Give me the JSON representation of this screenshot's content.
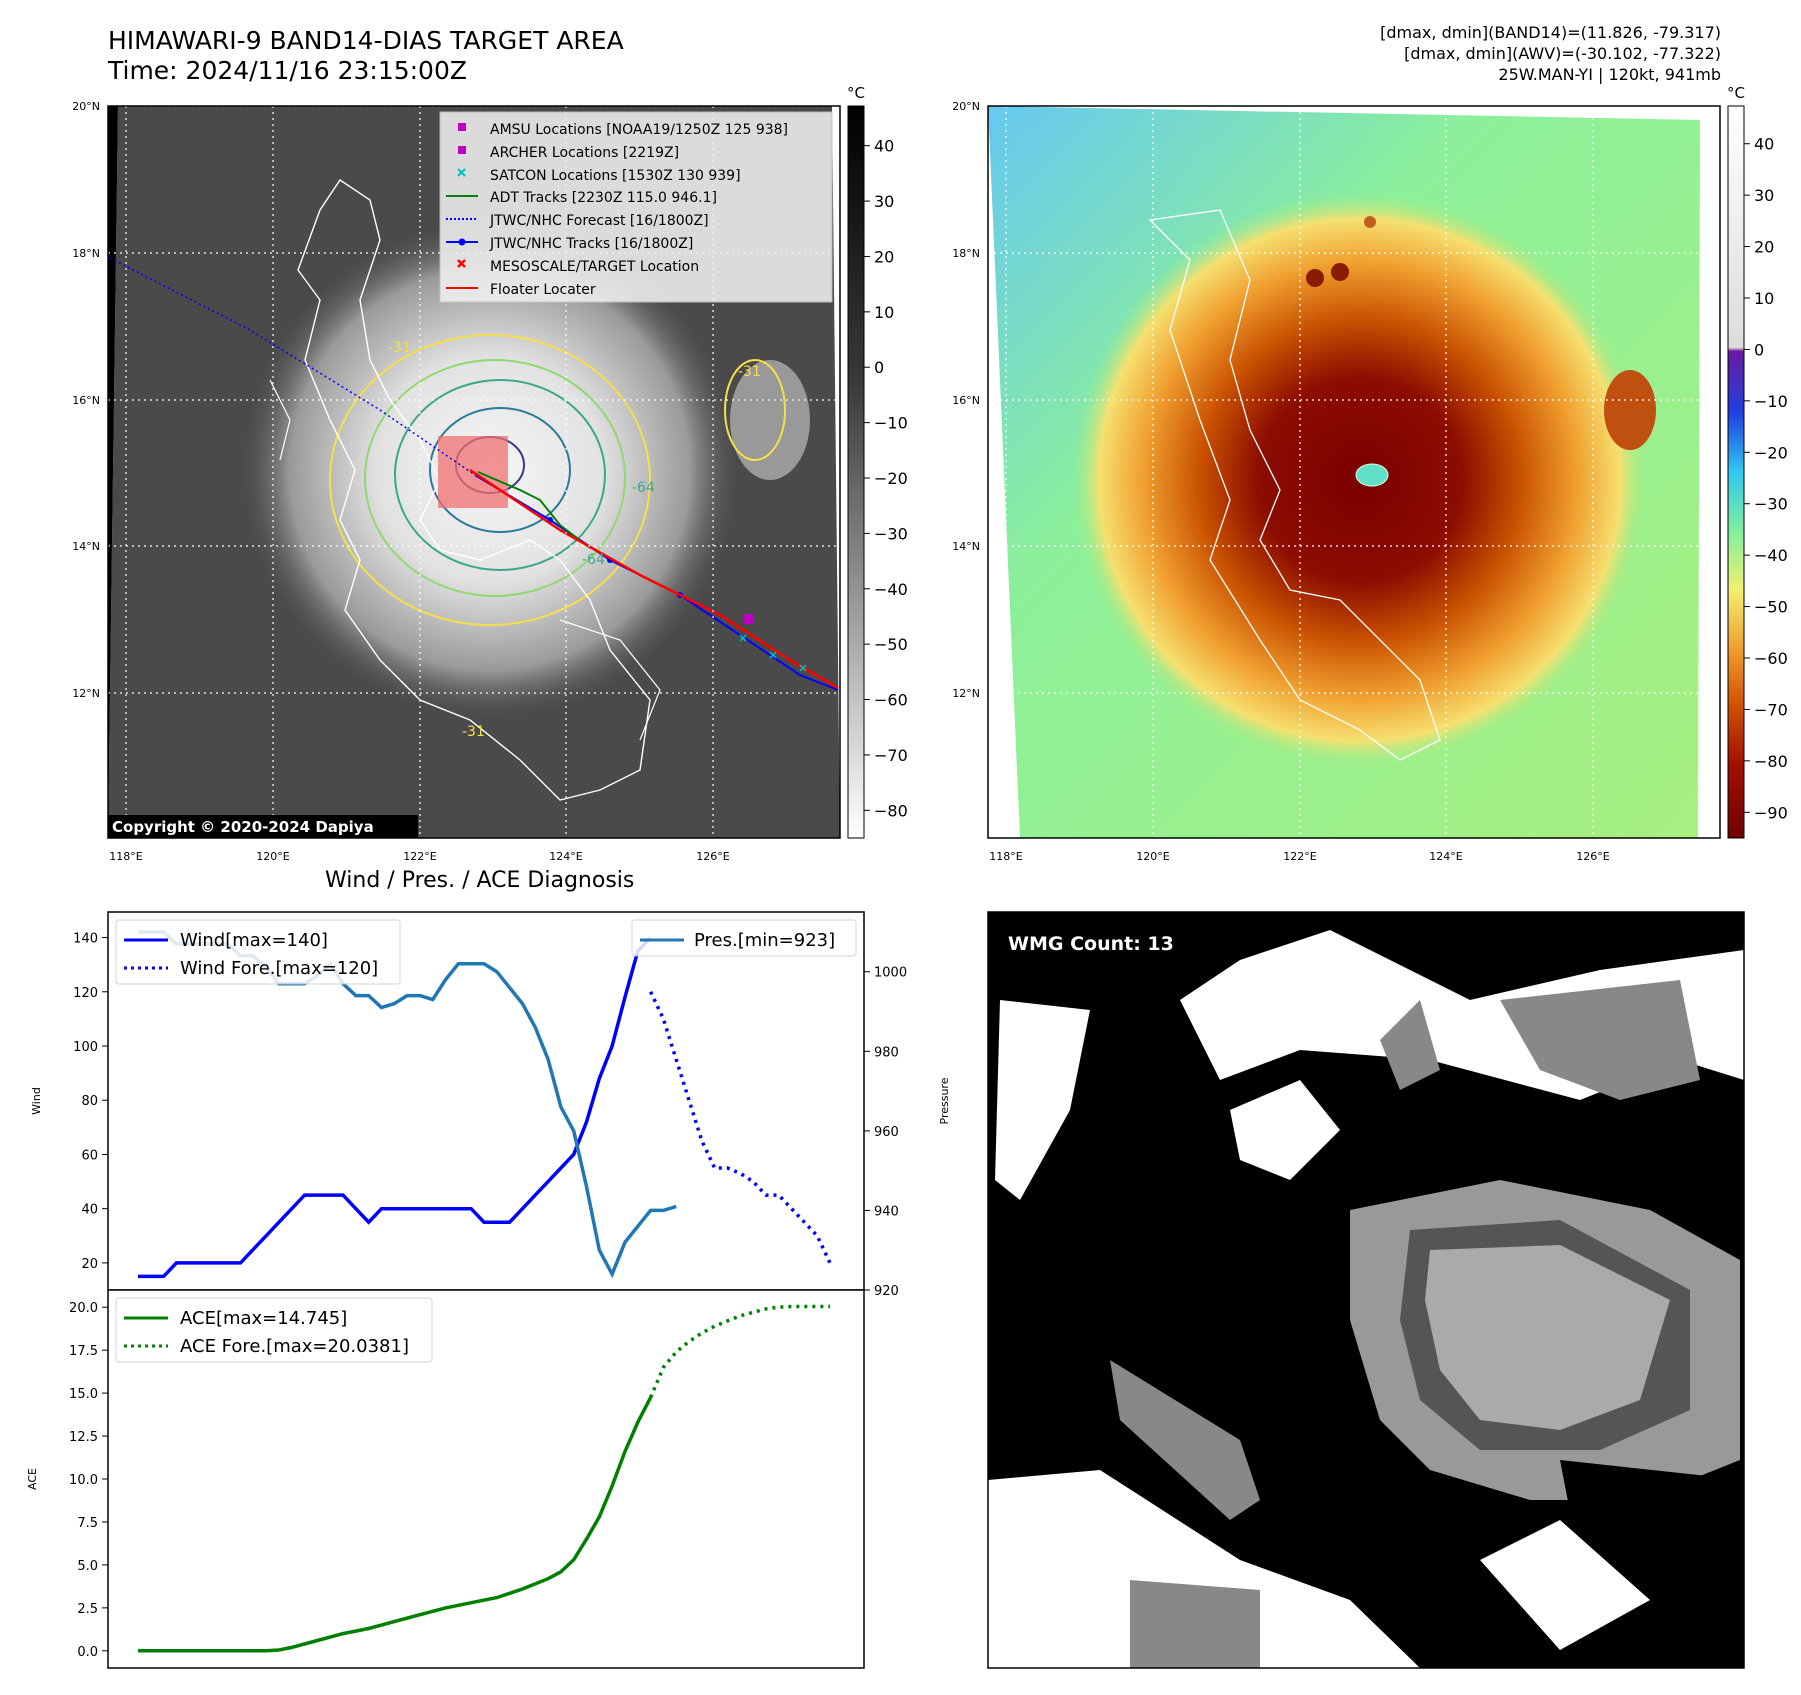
{
  "header": {
    "title_line1": "HIMAWARI-9 BAND14-DIAS TARGET AREA",
    "title_line2": "Time: 2024/11/16 23:15:00Z",
    "info_line1": "[dmax, dmin](BAND14)=(11.826, -79.317)",
    "info_line2": "[dmax, dmin](AWV)=(-30.102, -77.322)",
    "info_line3": "25W.MAN-YI | 120kt, 941mb"
  },
  "map": {
    "lat_labels": [
      "20°N",
      "18°N",
      "16°N",
      "14°N",
      "12°N"
    ],
    "lon_labels": [
      "118°E",
      "120°E",
      "122°E",
      "124°E",
      "126°E"
    ],
    "copyright": "Copyright © 2020-2024 Dapiya",
    "contour_labels": [
      "-31",
      "-31",
      "-64",
      "-64",
      "-31"
    ]
  },
  "colorbar_ir": {
    "unit": "°C",
    "ticks": [
      "40",
      "30",
      "20",
      "10",
      "0",
      "−10",
      "−20",
      "−30",
      "−40",
      "−50",
      "−60",
      "−70",
      "−80"
    ]
  },
  "colorbar_wv": {
    "unit": "°C",
    "ticks": [
      "40",
      "30",
      "20",
      "10",
      "0",
      "−10",
      "−20",
      "−30",
      "−40",
      "−50",
      "−60",
      "−70",
      "−80",
      "−90"
    ]
  },
  "legend": {
    "items": [
      {
        "label": "AMSU Locations [NOAA19/1250Z 125 938]",
        "color": "#c000c0",
        "style": "square"
      },
      {
        "label": "ARCHER Locations [2219Z]",
        "color": "#c000c0",
        "style": "square"
      },
      {
        "label": "SATCON Locations [1530Z 130 939]",
        "color": "#00c0c0",
        "style": "x"
      },
      {
        "label": "ADT Tracks [2230Z 115.0 946.1]",
        "color": "#008000",
        "style": "line"
      },
      {
        "label": "JTWC/NHC Forecast [16/1800Z]",
        "color": "#0000ff",
        "style": "dotted"
      },
      {
        "label": "JTWC/NHC Tracks [16/1800Z]",
        "color": "#0000ff",
        "style": "line-dot"
      },
      {
        "label": "MESOSCALE/TARGET Location",
        "color": "#ff0000",
        "style": "x"
      },
      {
        "label": "Floater Locater",
        "color": "#ff0000",
        "style": "line"
      }
    ]
  },
  "diagnosis": {
    "title": "Wind / Pres. / ACE Diagnosis",
    "wind_axis_label": "Wind",
    "pressure_axis_label": "Pressure",
    "ace_axis_label": "ACE",
    "wind_legend": "Wind[max=140]",
    "wind_fore_legend": "Wind Fore.[max=120]",
    "pres_legend": "Pres.[min=923]",
    "ace_legend": "ACE[max=14.745]",
    "ace_fore_legend": "ACE Fore.[max=20.0381]"
  },
  "wmg": {
    "label": "WMG Count: 13"
  },
  "chart_data": [
    {
      "type": "line",
      "title": "Wind / Pres. / ACE Diagnosis",
      "ylabel": "Wind",
      "ylim": [
        10,
        145
      ],
      "yticks": [
        20,
        40,
        60,
        80,
        100,
        120,
        140
      ],
      "x": [
        0,
        1,
        2,
        3,
        4,
        5,
        6,
        7,
        8,
        9,
        10,
        11,
        12,
        13,
        14,
        15,
        16,
        17,
        18,
        19,
        20,
        21,
        22,
        23,
        24,
        25,
        26,
        27,
        28,
        29,
        30,
        31,
        32,
        33,
        34,
        35,
        36,
        37,
        38,
        39,
        40,
        41,
        42,
        43,
        44,
        45,
        46,
        47,
        48,
        49,
        50,
        51,
        52,
        53,
        54
      ],
      "series": [
        {
          "name": "Wind[max=140]",
          "color": "#0000ff",
          "style": "solid",
          "x": [
            0,
            2,
            3,
            4,
            5,
            6,
            7,
            8,
            9,
            10,
            11,
            12,
            13,
            14,
            15,
            16,
            17,
            18,
            19,
            20,
            21,
            22,
            23,
            24,
            25,
            26,
            27,
            28,
            29,
            30,
            31,
            32,
            33,
            34,
            35,
            36,
            37,
            38,
            39,
            40
          ],
          "values": [
            15,
            15,
            20,
            20,
            20,
            20,
            20,
            20,
            25,
            30,
            35,
            40,
            45,
            45,
            45,
            45,
            40,
            35,
            40,
            40,
            40,
            40,
            40,
            40,
            40,
            40,
            35,
            35,
            35,
            40,
            45,
            50,
            55,
            60,
            72,
            88,
            100,
            118,
            135,
            140
          ]
        },
        {
          "name": "Wind Fore.[max=120]",
          "color": "#0000ff",
          "style": "dotted",
          "x": [
            40,
            41,
            42,
            43,
            44,
            45,
            46,
            47,
            48,
            49,
            50,
            51,
            52,
            53,
            54
          ],
          "values": [
            120,
            110,
            95,
            80,
            65,
            55,
            55,
            53,
            50,
            45,
            45,
            40,
            35,
            30,
            20
          ]
        }
      ]
    },
    {
      "type": "line",
      "ylabel": "Pressure",
      "ylim": [
        920,
        1012
      ],
      "yticks": [
        920,
        940,
        960,
        980,
        1000
      ],
      "series": [
        {
          "name": "Pres.[min=923]",
          "color": "#1f77b4",
          "style": "solid",
          "x": [
            0,
            1,
            2,
            3,
            4,
            5,
            6,
            7,
            8,
            9,
            10,
            11,
            12,
            13,
            14,
            15,
            16,
            17,
            18,
            19,
            20,
            21,
            22,
            23,
            24,
            25,
            26,
            27,
            28,
            29,
            30,
            31,
            32,
            33,
            34,
            35,
            36,
            37,
            38,
            39,
            40,
            41,
            42
          ],
          "values": [
            1010,
            1010,
            1010,
            1007,
            1007,
            1007,
            1007,
            1007,
            1004,
            1004,
            1001,
            997,
            997,
            997,
            999,
            1002,
            997,
            994,
            994,
            991,
            992,
            994,
            994,
            993,
            998,
            1002,
            1002,
            1002,
            1000,
            996,
            992,
            986,
            978,
            966,
            960,
            946,
            930,
            924,
            932,
            936,
            940,
            940,
            941
          ]
        }
      ]
    },
    {
      "type": "line",
      "ylabel": "ACE",
      "ylim": [
        -1,
        21
      ],
      "yticks": [
        0.0,
        2.5,
        5.0,
        7.5,
        10.0,
        12.5,
        15.0,
        17.5,
        20.0
      ],
      "series": [
        {
          "name": "ACE[max=14.745]",
          "color": "#008000",
          "style": "solid",
          "x": [
            0,
            2,
            4,
            6,
            8,
            10,
            11,
            12,
            14,
            16,
            18,
            20,
            22,
            24,
            26,
            28,
            30,
            32,
            33,
            34,
            35,
            36,
            37,
            38,
            39,
            40
          ],
          "values": [
            0,
            0,
            0,
            0,
            0,
            0,
            0.05,
            0.2,
            0.6,
            1.0,
            1.3,
            1.7,
            2.1,
            2.5,
            2.8,
            3.1,
            3.6,
            4.2,
            4.6,
            5.3,
            6.5,
            7.8,
            9.6,
            11.6,
            13.3,
            14.745
          ]
        },
        {
          "name": "ACE Fore.[max=20.0381]",
          "color": "#008000",
          "style": "dotted",
          "x": [
            40,
            41,
            42,
            43,
            44,
            45,
            46,
            47,
            48,
            49,
            50,
            51,
            52,
            53,
            54
          ],
          "values": [
            14.745,
            16.5,
            17.4,
            18.0,
            18.5,
            18.9,
            19.2,
            19.5,
            19.7,
            19.9,
            20.0,
            20.0381,
            20.0381,
            20.0381,
            20.0381
          ]
        }
      ]
    }
  ]
}
